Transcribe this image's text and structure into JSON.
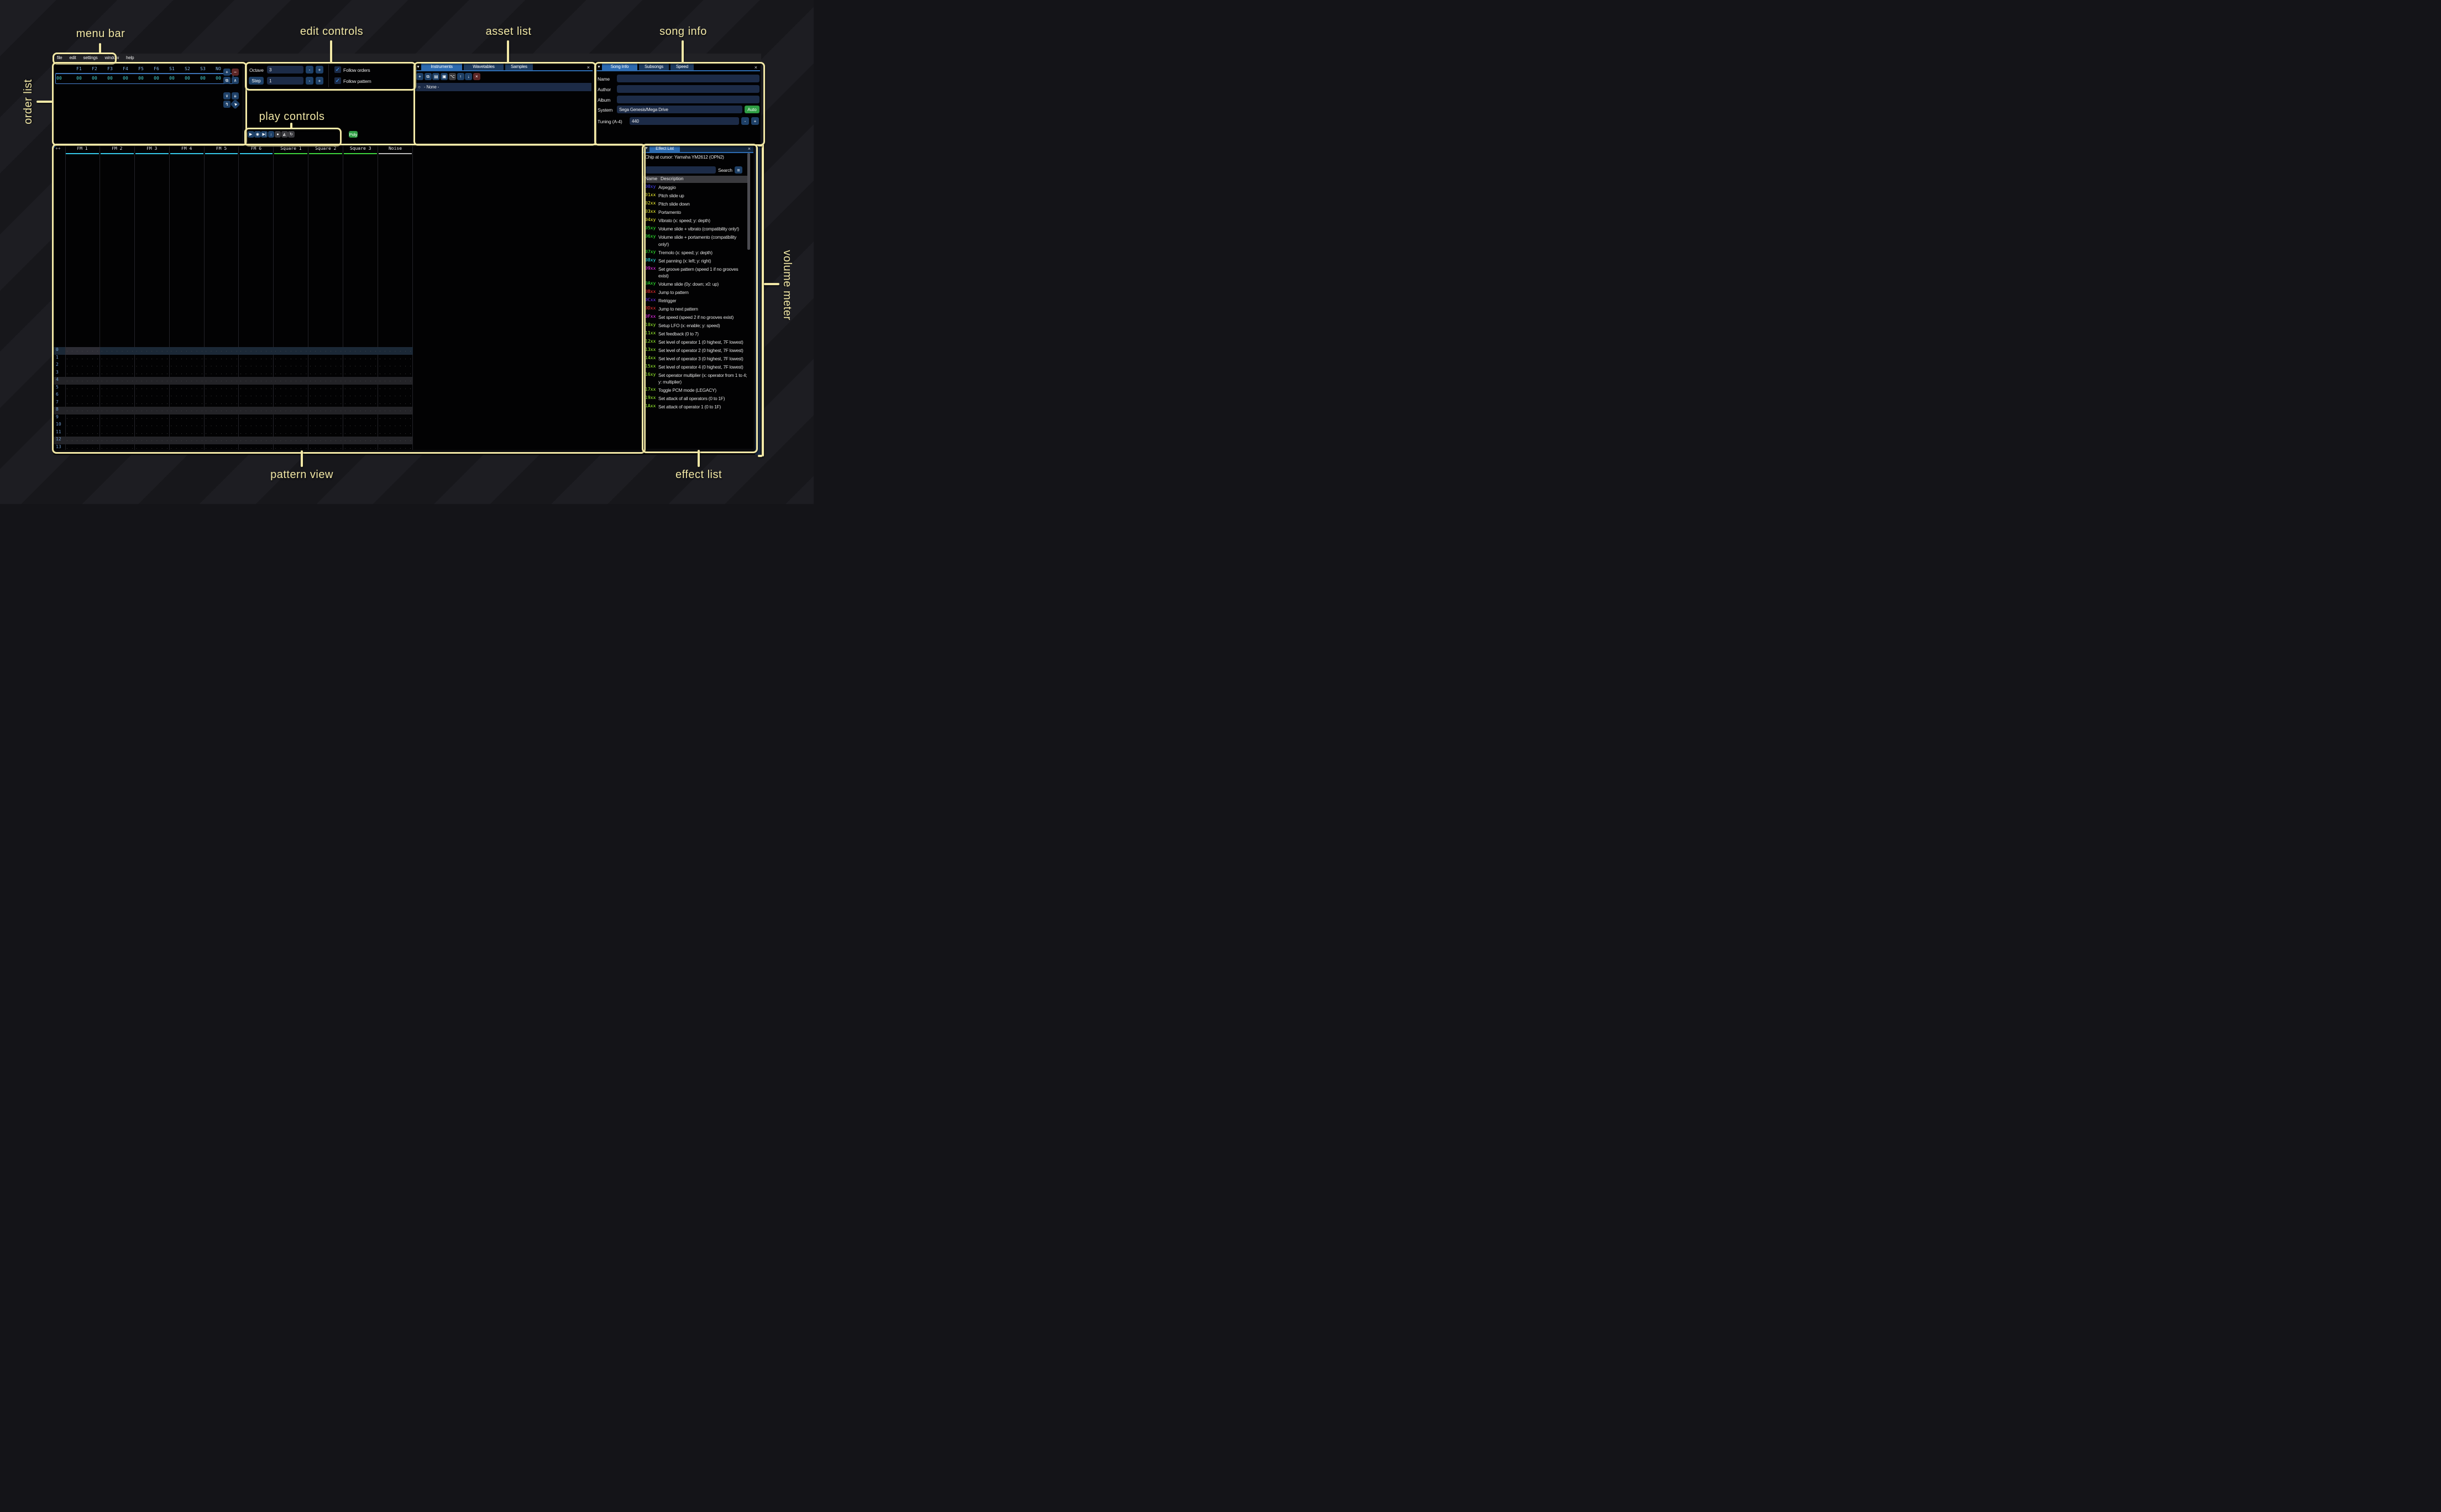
{
  "annotations": {
    "color": "#f2e8a6",
    "labels": {
      "menu_bar": "menu bar",
      "order_list": "order list",
      "edit_controls": "edit controls",
      "play_controls": "play controls",
      "asset_list": "asset list",
      "song_info": "song info",
      "pattern_view": "pattern view",
      "effect_list": "effect list",
      "volume_meter": "volume meter"
    }
  },
  "menu": {
    "items": [
      "file",
      "edit",
      "settings",
      "window",
      "help"
    ]
  },
  "order_list": {
    "columns": [
      "F1",
      "F2",
      "F3",
      "F4",
      "F5",
      "F6",
      "S1",
      "S2",
      "S3",
      "NO"
    ],
    "row_index": "00",
    "row_values": [
      "00",
      "00",
      "00",
      "00",
      "00",
      "00",
      "00",
      "00",
      "00",
      "00"
    ],
    "buttons": [
      {
        "name": "add-order-button",
        "glyph": "+",
        "style": "blue"
      },
      {
        "name": "remove-order-button",
        "glyph": "−",
        "style": "red"
      },
      {
        "name": "duplicate-order-button",
        "glyph": "⧉",
        "style": "blue"
      },
      {
        "name": "move-order-up-button",
        "glyph": "∧",
        "style": "blue"
      },
      {
        "name": "move-order-down-button",
        "glyph": "∨",
        "style": "blue"
      },
      {
        "name": "duplicate-order-end-button",
        "glyph": "⇊",
        "style": "blue"
      },
      {
        "name": "order-change-mode-button",
        "glyph": "↯",
        "style": "blue"
      },
      {
        "name": "order-edit-mode-button",
        "glyph": "▶",
        "style": "blue"
      }
    ]
  },
  "edit_controls": {
    "octave_label": "Octave",
    "octave_value": "3",
    "step_label": "Step",
    "step_value": "1",
    "minus_label": "-",
    "plus_label": "+",
    "follow_orders_label": "Follow orders",
    "follow_pattern_label": "Follow pattern",
    "checkmark": "✓"
  },
  "play_controls": {
    "buttons": [
      {
        "name": "play-button",
        "glyph": "▶",
        "style": "blue"
      },
      {
        "name": "play-pattern-button",
        "glyph": "◉",
        "style": "blue"
      },
      {
        "name": "play-from-cursor-button",
        "glyph": "▶|",
        "style": "blue"
      },
      {
        "name": "step-row-button",
        "glyph": "↓",
        "style": "blue"
      },
      {
        "name": "stop-button",
        "glyph": "●",
        "style": "gray"
      },
      {
        "name": "metronome-button",
        "glyph": "◭",
        "style": "gray"
      },
      {
        "name": "repeat-pattern-button",
        "glyph": "↻",
        "style": "gray"
      }
    ],
    "poly_label": "Poly"
  },
  "asset_list": {
    "tabs": [
      "Instruments",
      "Wavetables",
      "Samples"
    ],
    "active_tab": "Instruments",
    "close_label": "×",
    "toolbar": [
      {
        "name": "add-asset-button",
        "glyph": "+",
        "style": "blue"
      },
      {
        "name": "duplicate-asset-button",
        "glyph": "⧉",
        "style": "blue"
      },
      {
        "name": "open-asset-button",
        "glyph": "▤",
        "style": "blue"
      },
      {
        "name": "save-asset-button",
        "glyph": "▣",
        "style": "blue"
      },
      {
        "name": "asset-directories-button",
        "glyph": "⌥",
        "style": "gray"
      },
      {
        "name": "asset-up-button",
        "glyph": "↑",
        "style": "blue"
      },
      {
        "name": "asset-down-button",
        "glyph": "↓",
        "style": "blue"
      },
      {
        "name": "delete-asset-button",
        "glyph": "×",
        "style": "red"
      }
    ],
    "selected_item_icon": "○",
    "selected_item": "- None -"
  },
  "song_info": {
    "tabs": [
      "Song Info",
      "Subsongs",
      "Speed"
    ],
    "active_tab": "Song Info",
    "close_label": "×",
    "name_label": "Name",
    "name_value": "",
    "author_label": "Author",
    "author_value": "",
    "album_label": "Album",
    "album_value": "",
    "system_label": "System",
    "system_value": "Sega Genesis/Mega Drive",
    "auto_label": "Auto",
    "tuning_label": "Tuning (A-4)",
    "tuning_value": "440",
    "minus_label": "-",
    "plus_label": "+"
  },
  "pattern": {
    "corner": "++",
    "channels": [
      {
        "name": "FM 1",
        "color": "#35c8e8"
      },
      {
        "name": "FM 2",
        "color": "#35c8e8"
      },
      {
        "name": "FM 3",
        "color": "#35c8e8"
      },
      {
        "name": "FM 4",
        "color": "#35c8e8"
      },
      {
        "name": "FM 5",
        "color": "#35c8e8"
      },
      {
        "name": "FM 6",
        "color": "#35c8e8"
      },
      {
        "name": "Square 1",
        "color": "#3ed43e"
      },
      {
        "name": "Square 2",
        "color": "#3ed43e"
      },
      {
        "name": "Square 3",
        "color": "#3ed43e"
      },
      {
        "name": "Noise",
        "color": "#b8b8b8"
      }
    ],
    "row_count": 21,
    "hl1_rows": [
      4,
      8,
      12,
      20
    ],
    "hl2_rows": [
      0,
      16
    ],
    "empty_cell": ". . . .  . .  . .  . . . ."
  },
  "effect_list": {
    "title": "Effect List",
    "chip_note": "Chip at cursor: Yamaha YM2612 (OPN2)",
    "search_value": "",
    "search_label": "Search",
    "menu_icon": "≡",
    "close_label": "×",
    "col_name": "Name",
    "col_desc": "Description",
    "effects": [
      {
        "code": "00xy",
        "color": "#4945ff",
        "desc": "Arpeggio"
      },
      {
        "code": "01xx",
        "color": "#fdfd33",
        "desc": "Pitch slide up"
      },
      {
        "code": "02xx",
        "color": "#fdfd33",
        "desc": "Pitch slide down"
      },
      {
        "code": "03xx",
        "color": "#fdfd33",
        "desc": "Portamento"
      },
      {
        "code": "04xy",
        "color": "#fdfd33",
        "desc": "Vibrato (x: speed; y: depth)"
      },
      {
        "code": "05xy",
        "color": "#33ff33",
        "desc": "Volume slide + vibrato (compatibility only!)"
      },
      {
        "code": "06xy",
        "color": "#33ff33",
        "desc": "Volume slide + portamento (compatibility only!)"
      },
      {
        "code": "07xy",
        "color": "#33ff33",
        "desc": "Tremolo (x: speed; y: depth)"
      },
      {
        "code": "08xy",
        "color": "#33ffff",
        "desc": "Set panning (x: left; y: right)"
      },
      {
        "code": "09xx",
        "color": "#ff33ff",
        "desc": "Set groove pattern (speed 1 if no grooves exist)"
      },
      {
        "code": "0Axy",
        "color": "#33ff33",
        "desc": "Volume slide (0y: down; x0: up)"
      },
      {
        "code": "0Bxx",
        "color": "#ff3333",
        "desc": "Jump to pattern"
      },
      {
        "code": "0Cxx",
        "color": "#7733ff",
        "desc": "Retrigger"
      },
      {
        "code": "0Dxx",
        "color": "#ff3333",
        "desc": "Jump to next pattern"
      },
      {
        "code": "0Fxx",
        "color": "#ff33ff",
        "desc": "Set speed (speed 2 if no grooves exist)"
      },
      {
        "code": "10xy",
        "color": "#a0ff30",
        "desc": "Setup LFO (x: enable; y: speed)"
      },
      {
        "code": "11xx",
        "color": "#a0ff30",
        "desc": "Set feedback (0 to 7)"
      },
      {
        "code": "12xx",
        "color": "#a0ff30",
        "desc": "Set level of operator 1 (0 highest, 7F lowest)"
      },
      {
        "code": "13xx",
        "color": "#a0ff30",
        "desc": "Set level of operator 2 (0 highest, 7F lowest)"
      },
      {
        "code": "14xx",
        "color": "#a0ff30",
        "desc": "Set level of operator 3 (0 highest, 7F lowest)"
      },
      {
        "code": "15xx",
        "color": "#a0ff30",
        "desc": "Set level of operator 4 (0 highest, 7F lowest)"
      },
      {
        "code": "16xy",
        "color": "#a0ff30",
        "desc": "Set operator multiplier (x: operator from 1 to 4; y: multiplier)"
      },
      {
        "code": "17xx",
        "color": "#a0ff30",
        "desc": "Toggle PCM mode (LEGACY)"
      },
      {
        "code": "19xx",
        "color": "#a0ff30",
        "desc": "Set attack of all operators (0 to 1F)"
      },
      {
        "code": "1Axx",
        "color": "#a0ff30",
        "desc": "Set attack of operator 1 (0 to 1F)"
      }
    ]
  }
}
